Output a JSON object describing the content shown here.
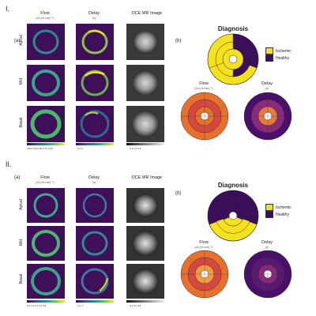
{
  "sections": [
    {
      "roman": "I.",
      "left_label": "(a)",
      "right_label": "(b)",
      "columns": [
        {
          "title": "Flow",
          "unit": "(ml (ml min)⁻¹)"
        },
        {
          "title": "Delay",
          "unit": "(s)"
        },
        {
          "title": "DCE MR Image",
          "unit": ""
        }
      ],
      "rows": [
        "Apical",
        "Mid",
        "Basal"
      ],
      "flow_ticks": "0.00 0.25 0.50 0.75 1.00",
      "delay_ticks": "0   2   4",
      "dce_ticks": "0.1  0.2  0.3",
      "diagnosis_title": "Diagnosis",
      "legend": [
        {
          "label": "Ischemic",
          "color": "#f6e11f"
        },
        {
          "label": "Healthy",
          "color": "#3b0d5a"
        }
      ],
      "bullseye_flow_title": "Flow",
      "bullseye_flow_unit": "(ml (ml min)⁻¹)",
      "bullseye_delay_title": "Delay",
      "bullseye_delay_unit": "(s)"
    },
    {
      "roman": "II.",
      "left_label": "(a)",
      "right_label": "(b)",
      "columns": [
        {
          "title": "Flow",
          "unit": "(ml (ml min)⁻¹)"
        },
        {
          "title": "Delay",
          "unit": "(s)"
        },
        {
          "title": "DCE MR Image",
          "unit": ""
        }
      ],
      "rows": [
        "Apical",
        "Mid",
        "Basal"
      ],
      "flow_ticks": "0.0  0.2  0.4  0.6  0.8",
      "delay_ticks": "0    2    4",
      "dce_ticks": "0.1  0.2  0.3",
      "diagnosis_title": "Diagnosis",
      "legend": [
        {
          "label": "Ischemic",
          "color": "#f6e11f"
        },
        {
          "label": "Healthy",
          "color": "#3b0d5a"
        }
      ],
      "bullseye_flow_title": "Flow",
      "bullseye_flow_unit": "(ml (ml min)⁻¹)",
      "bullseye_delay_title": "Delay",
      "bullseye_delay_unit": "(s)"
    }
  ],
  "colors": {
    "viridis_bg": "#3f0f5a",
    "ischemic": "#f6e11f",
    "healthy": "#3b0d5a",
    "flow_orange": "#e8702a",
    "flow_red": "#d4483f",
    "flow_light": "#f59a3c",
    "delay_purple": "#4a0f6a",
    "delay_mid": "#8a2a7a",
    "delay_orange": "#e87a3a"
  }
}
